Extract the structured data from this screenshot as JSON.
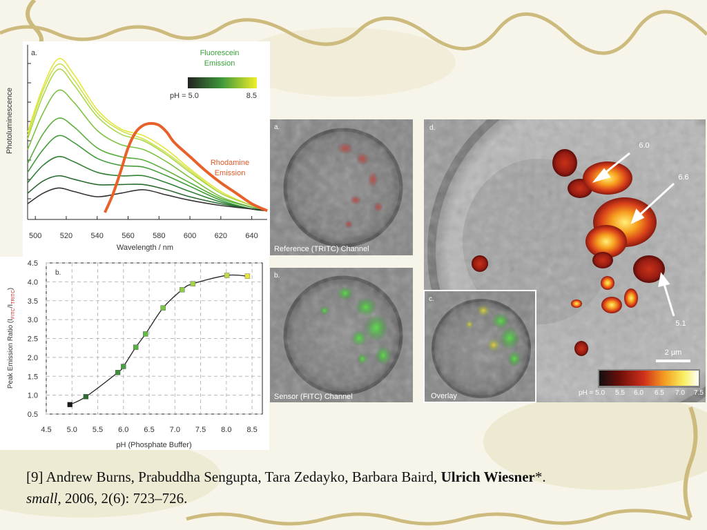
{
  "chart_data": [
    {
      "type": "line",
      "panel": "a.",
      "ylabel": "Photoluminescence",
      "xlabel": "Wavelength / nm",
      "fluorescein_label": [
        "Fluorescein",
        "Emission"
      ],
      "rhodamine_label": [
        "Rhodamine",
        "Emission"
      ],
      "colorbar": {
        "min_label": "pH = 5.0",
        "max_label": "8.5",
        "colors": [
          "#222222",
          "#3f9a3a",
          "#f2ee2a"
        ]
      },
      "x": [
        495,
        505,
        515,
        525,
        540,
        555,
        570,
        585,
        600,
        620,
        640,
        650
      ],
      "series": [
        {
          "color": "#e4e63a",
          "values": [
            5.0,
            7.6,
            9.2,
            8.3,
            6.3,
            5.2,
            4.8,
            4.0,
            2.9,
            1.6,
            0.8,
            0.5
          ]
        },
        {
          "color": "#cde24a",
          "values": [
            4.8,
            7.4,
            8.9,
            8.0,
            6.1,
            5.1,
            4.6,
            3.8,
            2.8,
            1.5,
            0.8,
            0.5
          ]
        },
        {
          "color": "#aad84a",
          "values": [
            4.6,
            7.1,
            8.6,
            7.7,
            5.9,
            4.9,
            4.5,
            3.7,
            2.7,
            1.5,
            0.8,
            0.5
          ]
        },
        {
          "color": "#7cc242",
          "values": [
            4.0,
            6.1,
            7.4,
            6.7,
            5.1,
            4.3,
            4.0,
            3.3,
            2.4,
            1.3,
            0.7,
            0.5
          ]
        },
        {
          "color": "#5aae3c",
          "values": [
            3.2,
            4.9,
            5.8,
            5.3,
            4.1,
            3.6,
            3.4,
            2.8,
            2.1,
            1.2,
            0.7,
            0.5
          ]
        },
        {
          "color": "#429c3a",
          "values": [
            2.7,
            4.0,
            4.8,
            4.4,
            3.5,
            3.1,
            3.0,
            2.5,
            1.9,
            1.1,
            0.6,
            0.5
          ]
        },
        {
          "color": "#2f8034",
          "values": [
            2.1,
            3.1,
            3.6,
            3.3,
            2.7,
            2.5,
            2.5,
            2.1,
            1.6,
            1.0,
            0.6,
            0.5
          ]
        },
        {
          "color": "#2a6a30",
          "values": [
            1.5,
            2.2,
            2.5,
            2.3,
            2.0,
            2.0,
            2.0,
            1.7,
            1.3,
            0.9,
            0.6,
            0.5
          ]
        },
        {
          "color": "#333333",
          "values": [
            0.9,
            1.5,
            1.8,
            1.6,
            1.3,
            1.5,
            1.7,
            1.4,
            1.1,
            0.8,
            0.6,
            0.5
          ]
        },
        {
          "color": "#e8602a",
          "linewidth": 4,
          "x": [
            545,
            550,
            555,
            560,
            565,
            570,
            575,
            580,
            585,
            590,
            600,
            610,
            620,
            630,
            640,
            650
          ],
          "values": [
            0.4,
            1.4,
            2.7,
            4.1,
            5.0,
            5.4,
            5.5,
            5.4,
            5.0,
            4.4,
            3.6,
            2.8,
            2.1,
            1.5,
            0.9,
            0.5
          ]
        }
      ],
      "xlim": [
        495,
        650
      ],
      "ylim": [
        0,
        10
      ],
      "xticks": [
        500,
        520,
        540,
        560,
        580,
        600,
        620,
        640
      ]
    },
    {
      "type": "scatter",
      "panel": "b.",
      "xlabel": "pH (Phosphate Buffer)",
      "ylabel": [
        "Peak Emission Ratio (I",
        "FITC",
        "/I",
        "TRITC",
        ")"
      ],
      "x": [
        4.96,
        5.27,
        5.89,
        6.0,
        6.24,
        6.43,
        6.77,
        7.14,
        7.35,
        8.01,
        8.41
      ],
      "values": [
        0.75,
        0.96,
        1.6,
        1.76,
        2.27,
        2.62,
        3.31,
        3.79,
        3.95,
        4.17,
        4.15
      ],
      "colors": [
        "#1a1a1a",
        "#2e6b2e",
        "#3f8f3a",
        "#48a040",
        "#56b043",
        "#64bb44",
        "#78c445",
        "#8ccc48",
        "#a2d44a",
        "#bedc4a",
        "#e6e63c"
      ],
      "line_color": "#222222",
      "xlim": [
        4.5,
        8.7
      ],
      "ylim": [
        0.5,
        4.5
      ],
      "xticks": [
        4.5,
        {
          "value": 5,
          "label": "5.0"
        },
        5.5,
        {
          "value": 6,
          "label": "6.0"
        },
        6.5,
        {
          "value": 7,
          "label": "7.0"
        },
        7.5,
        {
          "value": 8,
          "label": "8.0"
        },
        8.5
      ],
      "yticks": [
        0.5,
        {
          "value": 1,
          "label": "1.0"
        },
        1.5,
        {
          "value": 2,
          "label": "2.0"
        },
        2.5,
        {
          "value": 3,
          "label": "3.0"
        },
        3.5,
        {
          "value": 4,
          "label": "4.0"
        },
        4.5
      ],
      "grid": true
    }
  ],
  "images": [
    {
      "label": "a.",
      "caption": "Reference (TRITC) Channel"
    },
    {
      "label": "b.",
      "caption": "Sensor (FITC) Channel"
    },
    {
      "label": "c.",
      "caption": "Overlay"
    },
    {
      "label": "d.",
      "annotations": [
        "6.0",
        "6.6",
        "5.1"
      ],
      "scale_bar": "2 µm",
      "colorbar_labels": [
        "pH = 5.0",
        "5.5",
        "6.0",
        "6.5",
        "7.0",
        "7.5"
      ]
    }
  ],
  "citation": {
    "authors": "[9] Andrew Burns, Prabuddha Sengupta, Tara Zedayko, Barbara Baird, ",
    "highlight": "Ulrich Wiesner",
    "mark": "*.",
    "journal": "small,",
    "details": " 2006, 2(6): 723–726."
  }
}
